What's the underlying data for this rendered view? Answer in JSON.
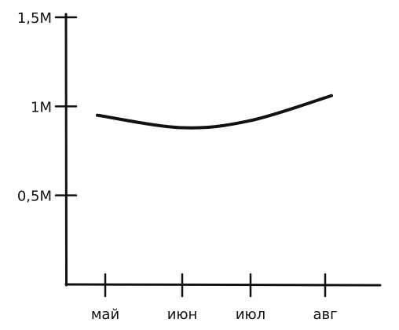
{
  "chart_data": {
    "type": "line",
    "categories": [
      "май",
      "июн",
      "июл",
      "авг"
    ],
    "series": [
      {
        "values": [
          950000,
          880000,
          920000,
          1060000
        ]
      }
    ],
    "y_ticks": [
      {
        "value": 500000,
        "label": "0,5M"
      },
      {
        "value": 1000000,
        "label": "1M"
      },
      {
        "value": 1500000,
        "label": "1,5M"
      }
    ],
    "ylim": [
      0,
      1500000
    ],
    "grid": false,
    "colors": {
      "axis": "#111111",
      "line": "#111111"
    }
  }
}
